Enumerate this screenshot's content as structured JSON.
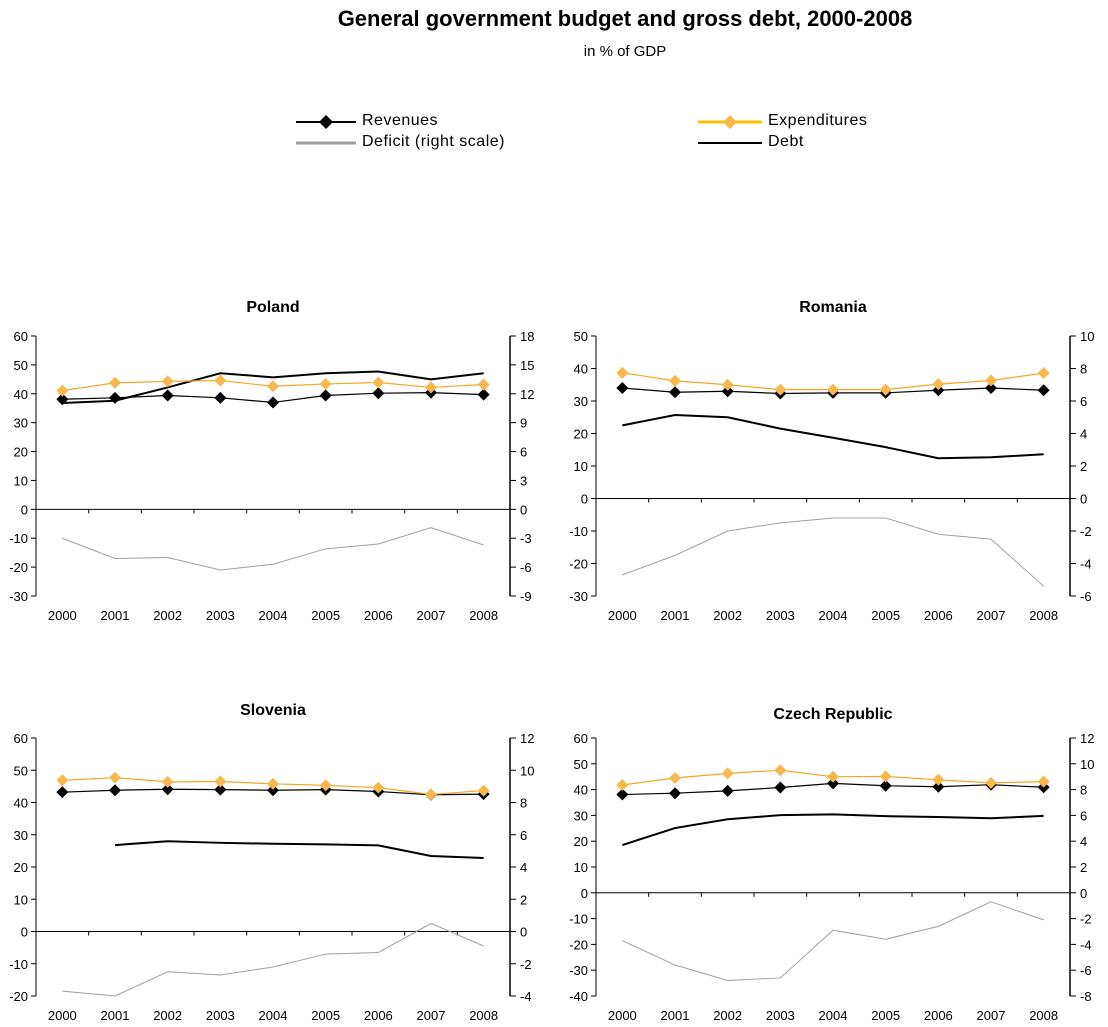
{
  "header": {
    "title": "General government budget and gross debt, 2000-2008",
    "subtitle": "in % of GDP"
  },
  "legend": {
    "revenues": "Revenues",
    "expenditures": "Expenditures",
    "deficit": "Deficit (right scale)",
    "debt": "Debt"
  },
  "colors": {
    "revenues": "#000000",
    "expenditures": "#F5A623",
    "expenditure_marker": "#F8B84E",
    "deficit": "#A0A0A0",
    "debt": "#000000"
  },
  "chart_data": [
    {
      "type": "line",
      "title": "Poland",
      "categories": [
        "2000",
        "2001",
        "2002",
        "2003",
        "2004",
        "2005",
        "2006",
        "2007",
        "2008"
      ],
      "left_ylim": [
        -30,
        60
      ],
      "left_ticks": [
        -30,
        -20,
        -10,
        0,
        10,
        20,
        30,
        40,
        50,
        60
      ],
      "right_ylim": [
        -9,
        18
      ],
      "right_ticks": [
        -9,
        -6,
        -3,
        0,
        3,
        6,
        9,
        12,
        15,
        18
      ],
      "series": [
        {
          "name": "Revenues",
          "axis": "left",
          "values": [
            38.1,
            38.6,
            39.4,
            38.6,
            37.0,
            39.4,
            40.2,
            40.4,
            39.7
          ]
        },
        {
          "name": "Expenditures",
          "axis": "left",
          "values": [
            41.1,
            43.8,
            44.3,
            44.6,
            42.6,
            43.4,
            43.9,
            42.2,
            43.2
          ]
        },
        {
          "name": "Deficit (right scale)",
          "axis": "right",
          "values": [
            -3.0,
            -5.1,
            -5.0,
            -6.3,
            -5.7,
            -4.1,
            -3.6,
            -1.9,
            -3.7
          ]
        },
        {
          "name": "Debt",
          "axis": "left",
          "values": [
            36.8,
            37.6,
            42.2,
            47.1,
            45.7,
            47.1,
            47.7,
            45.0,
            47.1
          ]
        }
      ]
    },
    {
      "type": "line",
      "title": "Romania",
      "categories": [
        "2000",
        "2001",
        "2002",
        "2003",
        "2004",
        "2005",
        "2006",
        "2007",
        "2008"
      ],
      "left_ylim": [
        -30,
        50
      ],
      "left_ticks": [
        -30,
        -20,
        -10,
        0,
        10,
        20,
        30,
        40,
        50
      ],
      "right_ylim": [
        -6,
        10
      ],
      "right_ticks": [
        -6,
        -4,
        -2,
        0,
        2,
        4,
        6,
        8,
        10
      ],
      "series": [
        {
          "name": "Revenues",
          "axis": "left",
          "values": [
            34.0,
            32.7,
            33.0,
            32.3,
            32.5,
            32.5,
            33.3,
            34.0,
            33.3
          ]
        },
        {
          "name": "Expenditures",
          "axis": "left",
          "values": [
            38.7,
            36.2,
            35.0,
            33.5,
            33.5,
            33.5,
            35.2,
            36.3,
            38.6
          ]
        },
        {
          "name": "Deficit (right scale)",
          "axis": "right",
          "values": [
            -4.7,
            -3.5,
            -2.0,
            -1.5,
            -1.2,
            -1.2,
            -2.2,
            -2.5,
            -5.4
          ]
        },
        {
          "name": "Debt",
          "axis": "left",
          "values": [
            22.5,
            25.7,
            25.0,
            21.5,
            18.7,
            15.8,
            12.4,
            12.7,
            13.6
          ]
        }
      ]
    },
    {
      "type": "line",
      "title": "Slovenia",
      "categories": [
        "2000",
        "2001",
        "2002",
        "2003",
        "2004",
        "2005",
        "2006",
        "2007",
        "2008"
      ],
      "left_ylim": [
        -20,
        60
      ],
      "left_ticks": [
        -20,
        -10,
        0,
        10,
        20,
        30,
        40,
        50,
        60
      ],
      "right_ylim": [
        -4,
        12
      ],
      "right_ticks": [
        -4,
        -2,
        0,
        2,
        4,
        6,
        8,
        10,
        12
      ],
      "series": [
        {
          "name": "Revenues",
          "axis": "left",
          "values": [
            43.2,
            43.8,
            44.1,
            44.0,
            43.8,
            44.0,
            43.4,
            42.4,
            42.6
          ]
        },
        {
          "name": "Expenditures",
          "axis": "left",
          "values": [
            46.9,
            47.7,
            46.4,
            46.5,
            45.8,
            45.3,
            44.6,
            42.5,
            43.7
          ]
        },
        {
          "name": "Deficit (right scale)",
          "axis": "right",
          "values": [
            -3.7,
            -4.0,
            -2.5,
            -2.7,
            -2.2,
            -1.4,
            -1.3,
            0.5,
            -0.9
          ]
        },
        {
          "name": "Debt",
          "axis": "left",
          "values": [
            null,
            26.8,
            28.0,
            27.5,
            27.2,
            27.0,
            26.7,
            23.4,
            22.8
          ]
        }
      ]
    },
    {
      "type": "line",
      "title": "Czech Republic",
      "categories": [
        "2000",
        "2001",
        "2002",
        "2003",
        "2004",
        "2005",
        "2006",
        "2007",
        "2008"
      ],
      "left_ylim": [
        -40,
        60
      ],
      "left_ticks": [
        -40,
        -30,
        -20,
        -10,
        0,
        10,
        20,
        30,
        40,
        50,
        60
      ],
      "right_ylim": [
        -8,
        12
      ],
      "right_ticks": [
        -8,
        -6,
        -4,
        -2,
        0,
        2,
        4,
        6,
        8,
        10,
        12
      ],
      "series": [
        {
          "name": "Revenues",
          "axis": "left",
          "values": [
            38.1,
            38.6,
            39.5,
            40.8,
            42.4,
            41.5,
            41.1,
            41.9,
            40.9
          ]
        },
        {
          "name": "Expenditures",
          "axis": "left",
          "values": [
            41.8,
            44.5,
            46.3,
            47.5,
            45.0,
            45.1,
            43.8,
            42.6,
            43.1
          ]
        },
        {
          "name": "Deficit (right scale)",
          "axis": "right",
          "values": [
            -3.7,
            -5.6,
            -6.8,
            -6.6,
            -2.9,
            -3.6,
            -2.6,
            -0.7,
            -2.1
          ]
        },
        {
          "name": "Debt",
          "axis": "left",
          "values": [
            18.5,
            25.1,
            28.5,
            30.1,
            30.4,
            29.7,
            29.4,
            28.9,
            29.8
          ]
        }
      ]
    }
  ]
}
